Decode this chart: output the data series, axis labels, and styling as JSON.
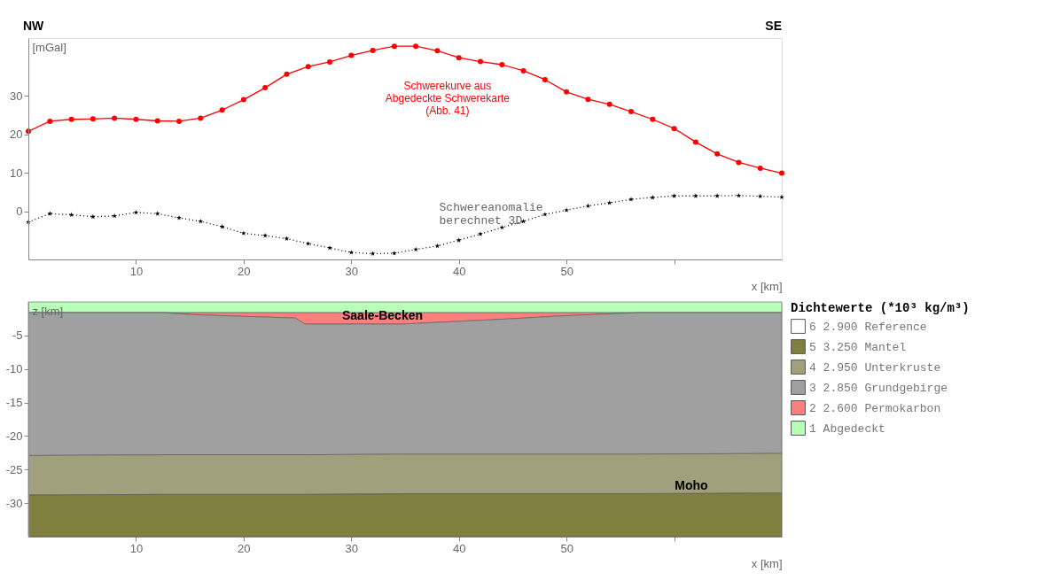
{
  "chart_data": [
    {
      "type": "line",
      "annotations": [
        "NW",
        "SE"
      ],
      "ylabel": "[mGal]",
      "xlabel": "x [km]",
      "xlim": [
        0,
        70
      ],
      "xticks": [
        10,
        20,
        30,
        40,
        50,
        {
          "value": 60,
          "label": null
        }
      ],
      "ylim": [
        -12.5,
        45
      ],
      "yticks": [
        0,
        10,
        20,
        30
      ],
      "grid": false,
      "legend": false,
      "x": [
        0,
        2,
        4,
        6,
        8,
        10,
        12,
        14,
        16,
        18,
        20,
        22,
        24,
        26,
        28,
        30,
        32,
        34,
        36,
        38,
        40,
        42,
        44,
        46,
        48,
        50,
        52,
        54,
        56,
        58,
        60,
        62,
        64,
        66,
        68,
        70
      ],
      "series": [
        {
          "name": "Schwerekurve aus\nAbgedeckte Schwerekarte\n(Abb. 41)",
          "color": "#ff0000",
          "marker": "circle",
          "line_style": "solid",
          "values": [
            20.8,
            23.4,
            23.9,
            24.0,
            24.2,
            23.9,
            23.5,
            23.4,
            24.2,
            26.3,
            29.0,
            32.1,
            35.6,
            37.6,
            38.8,
            40.5,
            41.8,
            42.9,
            42.9,
            41.7,
            39.9,
            38.9,
            38.1,
            36.5,
            34.2,
            31.0,
            29.1,
            27.8,
            25.9,
            23.9,
            21.5,
            18.0,
            14.9,
            12.7,
            11.2,
            9.9
          ]
        },
        {
          "name": "Schwereanomalie\nberechnet 3D",
          "color": "#000000",
          "marker": "star",
          "line_style": "dotted",
          "values": [
            -2.8,
            -0.6,
            -0.9,
            -1.4,
            -1.2,
            -0.3,
            -0.6,
            -1.7,
            -2.6,
            -4.0,
            -5.7,
            -6.3,
            -7.1,
            -8.4,
            -9.5,
            -10.7,
            -11.0,
            -10.9,
            -9.9,
            -9.0,
            -7.5,
            -5.9,
            -4.2,
            -2.6,
            -0.8,
            0.3,
            1.4,
            2.2,
            3.1,
            3.6,
            4.0,
            4.0,
            4.0,
            4.1,
            3.9,
            3.7
          ]
        }
      ]
    },
    {
      "type": "area",
      "stacked": true,
      "ylabel": "z [km]",
      "xlabel": "x [km]",
      "xlim": [
        0,
        70
      ],
      "xticks": [
        10,
        20,
        30,
        40,
        50,
        {
          "value": 60,
          "label": null
        }
      ],
      "ylim": [
        -35,
        0
      ],
      "yticks": [
        -5,
        -10,
        -15,
        -20,
        -25,
        -30
      ],
      "grid": false,
      "legend": "right",
      "legend_title": "Dichtewerte (*10³ kg/m³)",
      "annotations": [
        "Saale-Becken",
        "Moho"
      ],
      "x": [
        0,
        12.7,
        15.4,
        24.8,
        25.7,
        34.7,
        44.9,
        49.2,
        56.7,
        70
      ],
      "series": [
        {
          "name": "1 Abgedeckt",
          "color": "#b8ffb8",
          "values": [
            -1.6,
            -1.6,
            -1.6,
            -1.6,
            -1.6,
            -1.6,
            -1.6,
            -1.6,
            -1.6,
            -1.6
          ]
        },
        {
          "name": "2 2.600 Permokarbon",
          "color": "#ff7f7f",
          "values": [
            0,
            0,
            -0.3,
            -0.8,
            -1.7,
            -1.7,
            -0.9,
            -0.5,
            0,
            0
          ]
        },
        {
          "name": "3 2.850 Grundgebirge",
          "color": "#a0a0a0",
          "values": [
            -21.3,
            -21.2,
            -20.9,
            -20.4,
            -19.5,
            -19.4,
            -20.2,
            -20.6,
            -21.1,
            -21.0
          ]
        },
        {
          "name": "4 2.950 Unterkruste",
          "color": "#a0a07c",
          "values": [
            -5.9,
            -5.9,
            -5.9,
            -5.9,
            -5.9,
            -5.9,
            -5.9,
            -5.9,
            -5.9,
            -5.9
          ]
        },
        {
          "name": "5 3.250 Mantel",
          "color": "#7f7f3f",
          "values": [
            -6.2,
            -6.3,
            -6.3,
            -6.3,
            -6.3,
            -6.4,
            -6.4,
            -6.4,
            -6.4,
            -6.5
          ]
        },
        {
          "name": "6 2.900 Reference",
          "color": "#ffffff",
          "values": [
            null,
            null,
            null,
            null,
            null,
            null,
            null,
            null,
            null,
            null
          ]
        }
      ]
    }
  ]
}
